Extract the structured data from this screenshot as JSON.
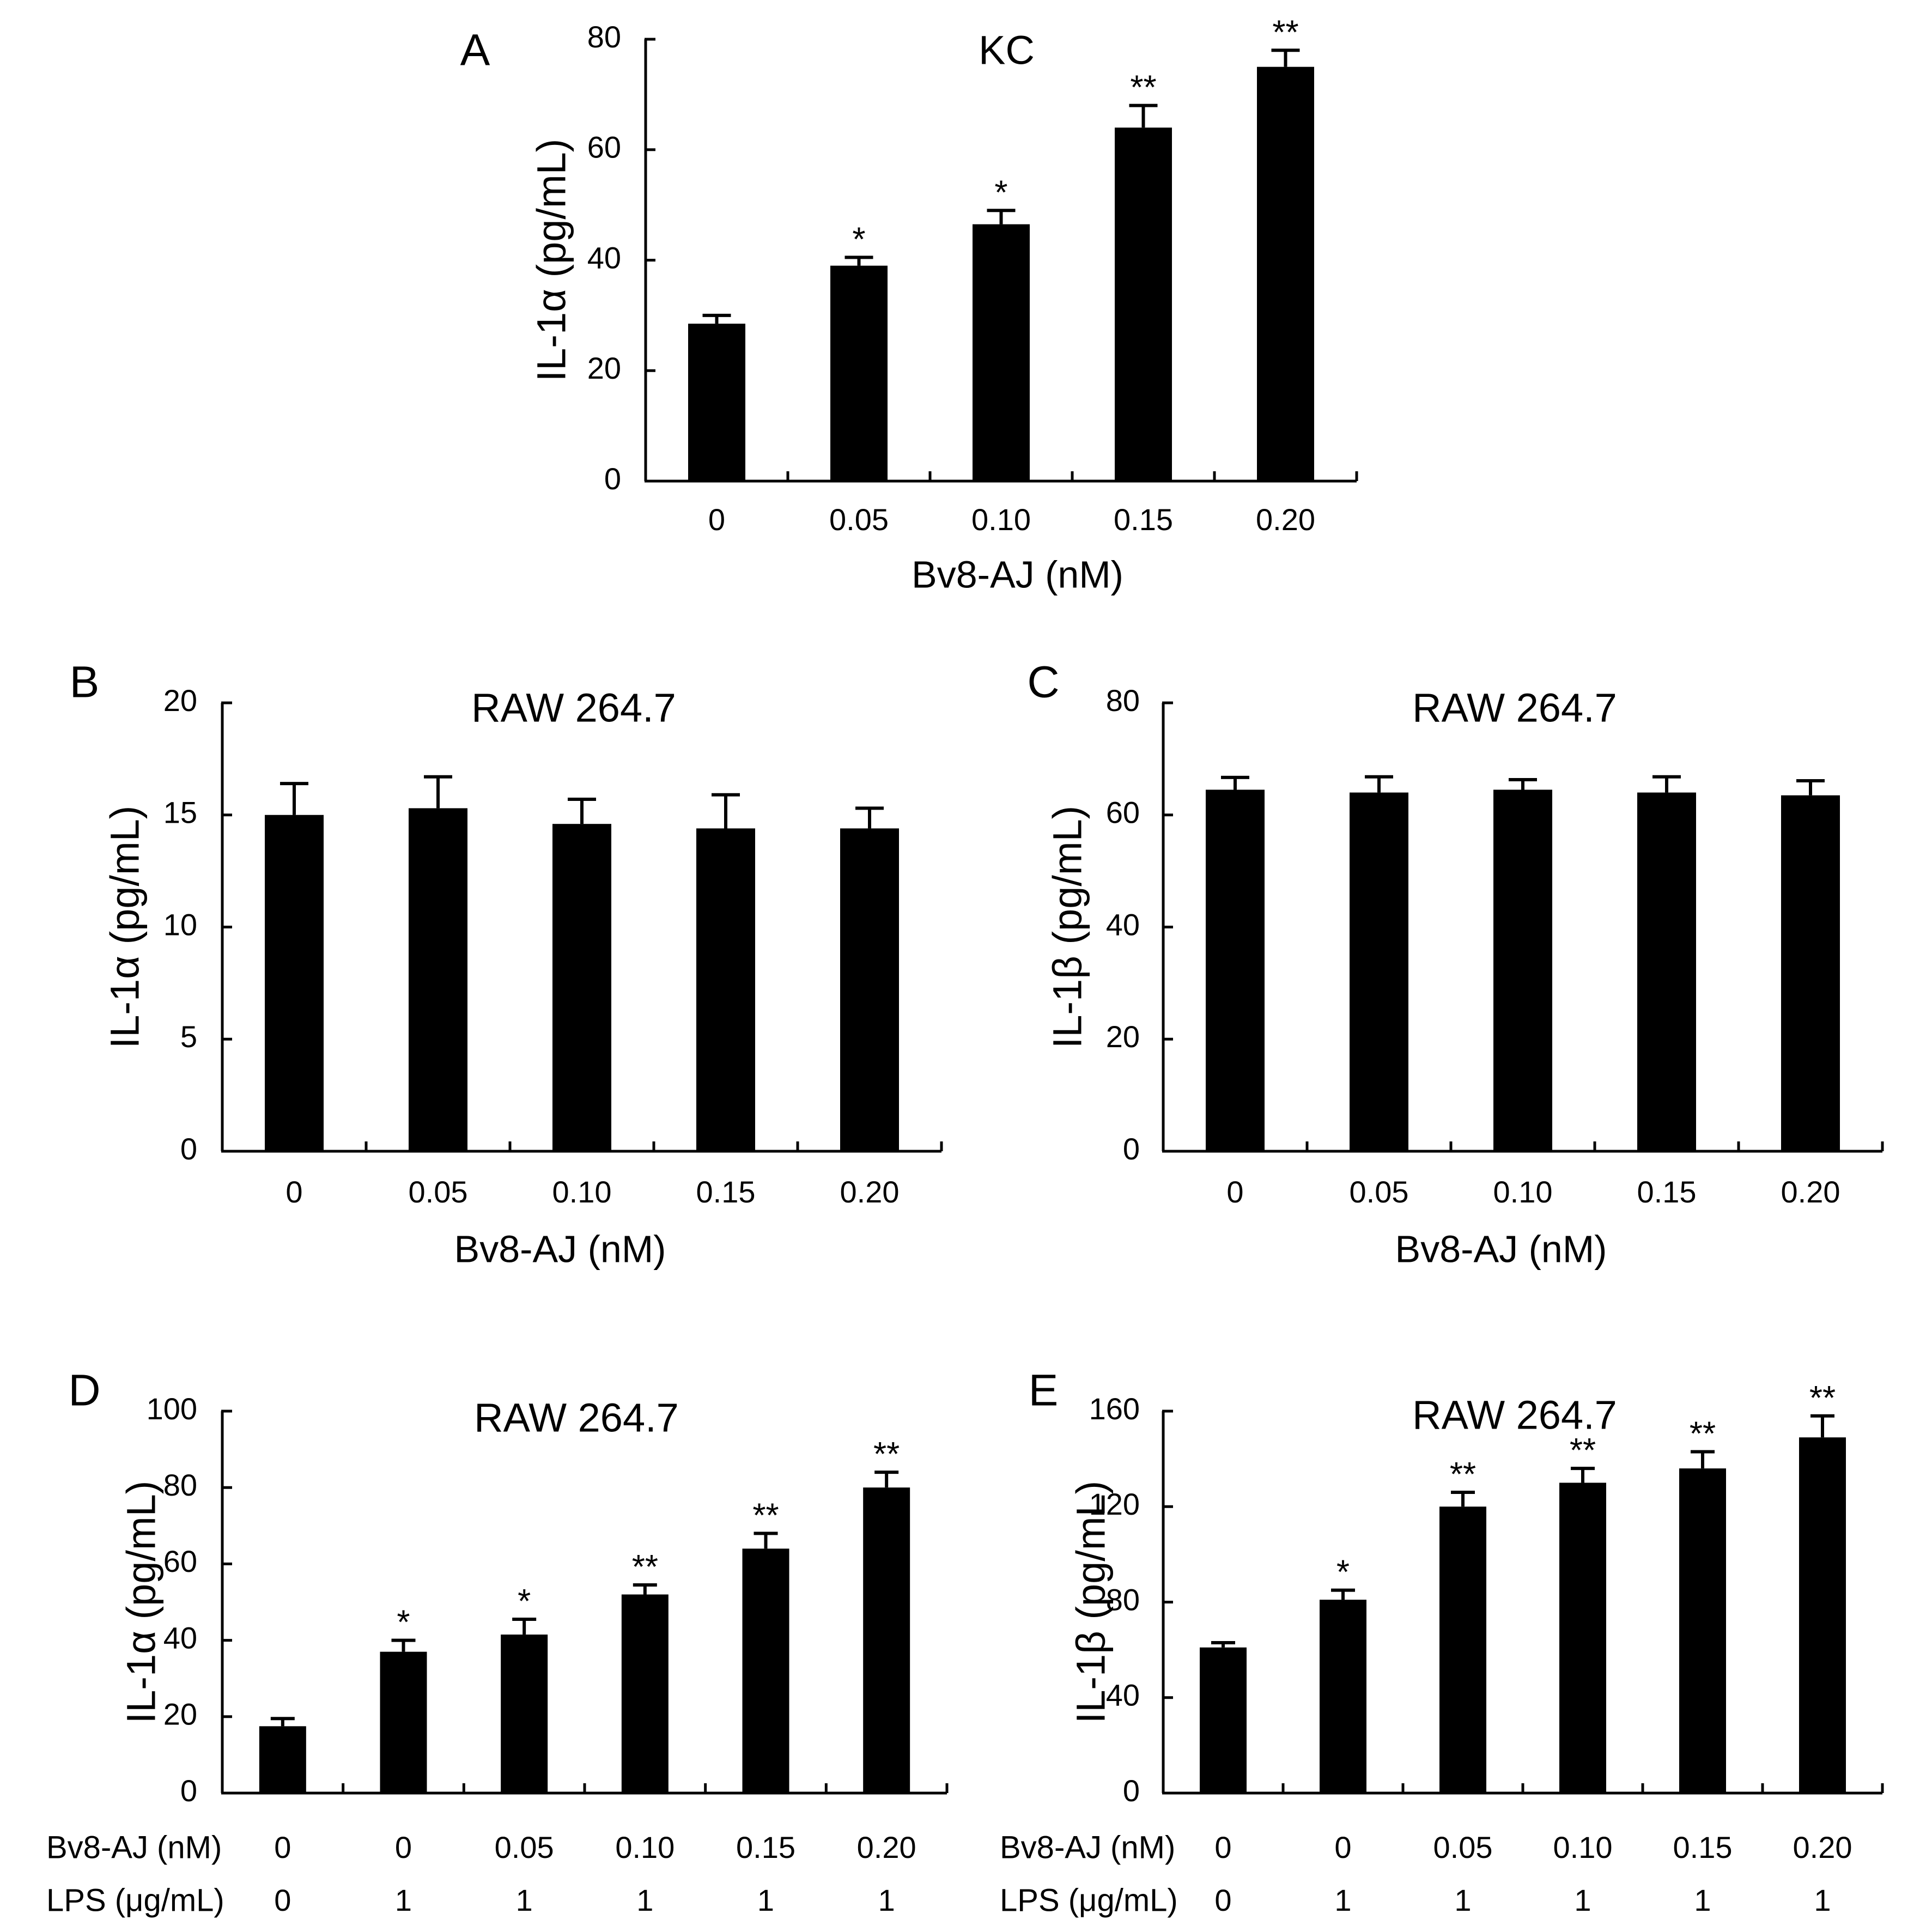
{
  "chart_data": [
    {
      "id": "A",
      "panel_label": "A",
      "type": "bar",
      "title": "KC",
      "ylabel": "IL-1α (pg/mL)",
      "xlabel": "Bv8-AJ (nM)",
      "categories": [
        "0",
        "0.05",
        "0.10",
        "0.15",
        "0.20"
      ],
      "values": [
        28.5,
        39,
        46.5,
        64,
        75
      ],
      "errors": [
        1.5,
        1.5,
        2.5,
        4,
        3
      ],
      "significance": [
        "",
        "*",
        "*",
        "**",
        "**"
      ],
      "ylim": [
        0,
        80
      ],
      "yticks": [
        0,
        20,
        40,
        60,
        80
      ],
      "ytick_labels": [
        "0",
        "20",
        "40",
        "60",
        "80"
      ]
    },
    {
      "id": "B",
      "panel_label": "B",
      "type": "bar",
      "title": "RAW 264.7",
      "ylabel": "IL-1α (pg/mL)",
      "xlabel": "Bv8-AJ (nM)",
      "categories": [
        "0",
        "0.05",
        "0.10",
        "0.15",
        "0.20"
      ],
      "values": [
        15,
        15.3,
        14.6,
        14.4,
        14.4
      ],
      "errors": [
        1.4,
        1.4,
        1.1,
        1.5,
        0.9
      ],
      "significance": [
        "",
        "",
        "",
        "",
        ""
      ],
      "ylim": [
        0,
        20
      ],
      "yticks": [
        0,
        5,
        10,
        15,
        20
      ],
      "ytick_labels": [
        "0",
        "5",
        "10",
        "15",
        "20"
      ]
    },
    {
      "id": "C",
      "panel_label": "C",
      "type": "bar",
      "title": "RAW 264.7",
      "ylabel": "IL-1β (pg/mL)",
      "xlabel": "Bv8-AJ (nM)",
      "categories": [
        "0",
        "0.05",
        "0.10",
        "0.15",
        "0.20"
      ],
      "values": [
        64.5,
        64,
        64.5,
        64,
        63.5
      ],
      "errors": [
        2.2,
        2.8,
        1.8,
        2.8,
        2.6
      ],
      "significance": [
        "",
        "",
        "",
        "",
        ""
      ],
      "ylim": [
        0,
        80
      ],
      "yticks": [
        0,
        20,
        40,
        60,
        80
      ],
      "ytick_labels": [
        "0",
        "20",
        "40",
        "60",
        "80"
      ]
    },
    {
      "id": "D",
      "panel_label": "D",
      "type": "bar",
      "title": "RAW 264.7",
      "ylabel": "IL-1α (pg/mL)",
      "bv8_label": "Bv8-AJ (nM)",
      "lps_label": "LPS (μg/mL)",
      "bv8_values": [
        "0",
        "0",
        "0.05",
        "0.10",
        "0.15",
        "0.20"
      ],
      "lps_values": [
        "0",
        "1",
        "1",
        "1",
        "1",
        "1"
      ],
      "values": [
        17.5,
        37,
        41.5,
        52,
        64,
        80
      ],
      "errors": [
        2,
        3,
        4,
        2.5,
        4,
        4
      ],
      "significance": [
        "",
        "*",
        "*",
        "**",
        "**",
        "**"
      ],
      "ylim": [
        0,
        100
      ],
      "yticks": [
        0,
        20,
        40,
        60,
        80,
        100
      ],
      "ytick_labels": [
        "0",
        "20",
        "40",
        "60",
        "80",
        "100"
      ]
    },
    {
      "id": "E",
      "panel_label": "E",
      "type": "bar",
      "title": "RAW 264.7",
      "ylabel": "IL-1β (pg/mL)",
      "bv8_label": "Bv8-AJ (nM)",
      "lps_label": "LPS (μg/mL)",
      "bv8_values": [
        "0",
        "0",
        "0.05",
        "0.10",
        "0.15",
        "0.20"
      ],
      "lps_values": [
        "0",
        "1",
        "1",
        "1",
        "1",
        "1"
      ],
      "values": [
        61,
        81,
        120,
        130,
        136,
        149
      ],
      "errors": [
        2,
        4,
        6,
        6,
        7,
        9
      ],
      "significance": [
        "",
        "*",
        "**",
        "**",
        "**",
        "**"
      ],
      "ylim": [
        0,
        160
      ],
      "yticks": [
        0,
        40,
        80,
        120,
        160
      ],
      "ytick_labels": [
        "0",
        "40",
        "80",
        "120",
        "160"
      ]
    }
  ]
}
